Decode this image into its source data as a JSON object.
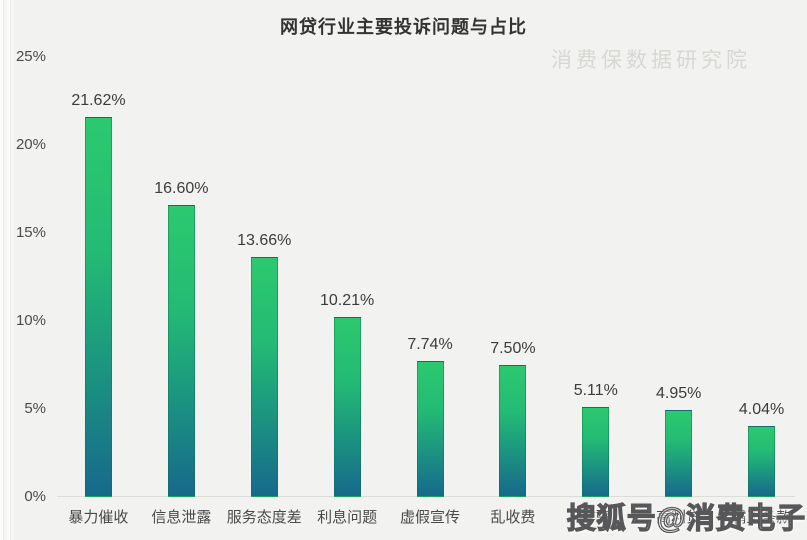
{
  "title": "网贷行业主要投诉问题与占比",
  "watermarks": {
    "top_right": "消费保数据研究院",
    "bottom_right": "搜狐号@消费电子"
  },
  "colors": {
    "background": "#f2f2f0",
    "bar_gradient_top": "#2cc96f",
    "bar_gradient_bottom": "#17698c",
    "title_text": "#333333",
    "axis_text": "#4b4b4b",
    "value_label_text": "#3c3c3c",
    "watermark_top": "#d7d7d4",
    "baseline": "#dcdcda"
  },
  "chart_data": {
    "type": "bar",
    "title": "网贷行业主要投诉问题与占比",
    "categories": [
      "暴力催收",
      "信息泄露",
      "服务态度差",
      "利息问题",
      "虚假宣传",
      "乱收费",
      "诈骗",
      "高利贷",
      "霸王条款"
    ],
    "values": [
      21.62,
      16.6,
      13.66,
      10.21,
      7.74,
      7.5,
      5.11,
      4.95,
      4.04
    ],
    "value_labels": [
      "21.62%",
      "16.60%",
      "13.66%",
      "10.21%",
      "7.74%",
      "7.50%",
      "5.11%",
      "4.95%",
      "4.04%"
    ],
    "xlabel": "",
    "ylabel": "",
    "ylim": [
      0,
      25
    ],
    "y_ticks": [
      {
        "label": "25%",
        "value": 25
      },
      {
        "label": "20%",
        "value": 20
      },
      {
        "label": "15%",
        "value": 15
      },
      {
        "label": "10%",
        "value": 10
      },
      {
        "label": "5%",
        "value": 5
      },
      {
        "label": "0%",
        "value": 0
      }
    ],
    "grid": false,
    "legend": false
  }
}
